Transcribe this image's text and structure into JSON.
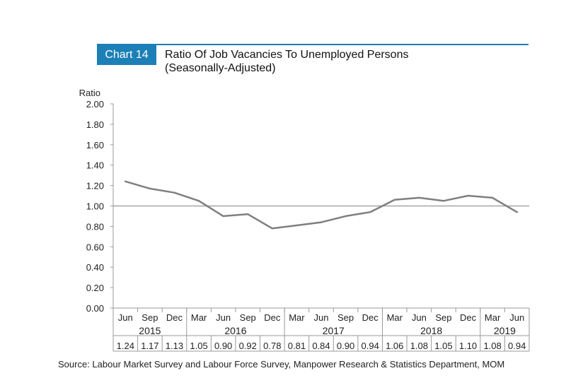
{
  "header": {
    "badge": "Chart 14",
    "title_line1": "Ratio Of Job Vacancies To Unemployed Persons",
    "title_line2": "(Seasonally-Adjusted)"
  },
  "chart_data": {
    "type": "line",
    "ylabel": "Ratio",
    "ylim": [
      0,
      2
    ],
    "yticks": [
      "0.00",
      "0.20",
      "0.40",
      "0.60",
      "0.80",
      "1.00",
      "1.20",
      "1.40",
      "1.60",
      "1.80",
      "2.00"
    ],
    "categories": [
      "Jun",
      "Sep",
      "Dec",
      "Mar",
      "Jun",
      "Sep",
      "Dec",
      "Mar",
      "Jun",
      "Sep",
      "Dec",
      "Mar",
      "Jun",
      "Sep",
      "Dec",
      "Mar",
      "Jun"
    ],
    "years": [
      {
        "label": "2015",
        "span": 3
      },
      {
        "label": "2016",
        "span": 4
      },
      {
        "label": "2017",
        "span": 4
      },
      {
        "label": "2018",
        "span": 4
      },
      {
        "label": "2019",
        "span": 2
      }
    ],
    "values": [
      1.24,
      1.17,
      1.13,
      1.05,
      0.9,
      0.92,
      0.78,
      0.81,
      0.84,
      0.9,
      0.94,
      1.06,
      1.08,
      1.05,
      1.1,
      1.08,
      0.94
    ],
    "value_labels": [
      "1.24",
      "1.17",
      "1.13",
      "1.05",
      "0.90",
      "0.92",
      "0.78",
      "0.81",
      "0.84",
      "0.90",
      "0.94",
      "1.06",
      "1.08",
      "1.05",
      "1.10",
      "1.08",
      "0.94"
    ],
    "reference_line": 1.0,
    "grid": false,
    "line_color": "#7f7f7f",
    "reference_color": "#a6a6a6"
  },
  "source": "Source: Labour Market Survey and Labour Force Survey, Manpower Research & Statistics Department, MOM"
}
